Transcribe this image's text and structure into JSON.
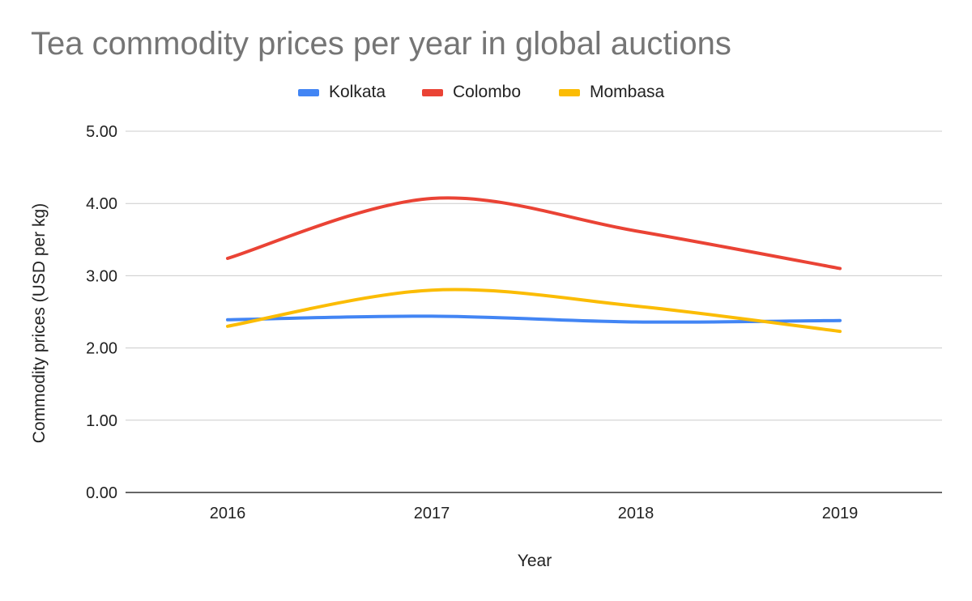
{
  "chart_data": {
    "type": "line",
    "title": "Tea commodity prices per year in global auctions",
    "xlabel": "Year",
    "ylabel": "Commodity prices (USD per kg)",
    "categories": [
      "2016",
      "2017",
      "2018",
      "2019"
    ],
    "series": [
      {
        "name": "Kolkata",
        "color": "#4285f4",
        "values": [
          2.39,
          2.44,
          2.36,
          2.38
        ]
      },
      {
        "name": "Colombo",
        "color": "#ea4335",
        "values": [
          3.24,
          4.07,
          3.62,
          3.1
        ]
      },
      {
        "name": "Mombasa",
        "color": "#fbbc04",
        "values": [
          2.3,
          2.8,
          2.58,
          2.23
        ]
      }
    ],
    "ylim": [
      0,
      5
    ],
    "yticks": [
      "0.00",
      "1.00",
      "2.00",
      "3.00",
      "4.00",
      "5.00"
    ],
    "grid": true,
    "legend_position": "top",
    "smooth": true
  }
}
